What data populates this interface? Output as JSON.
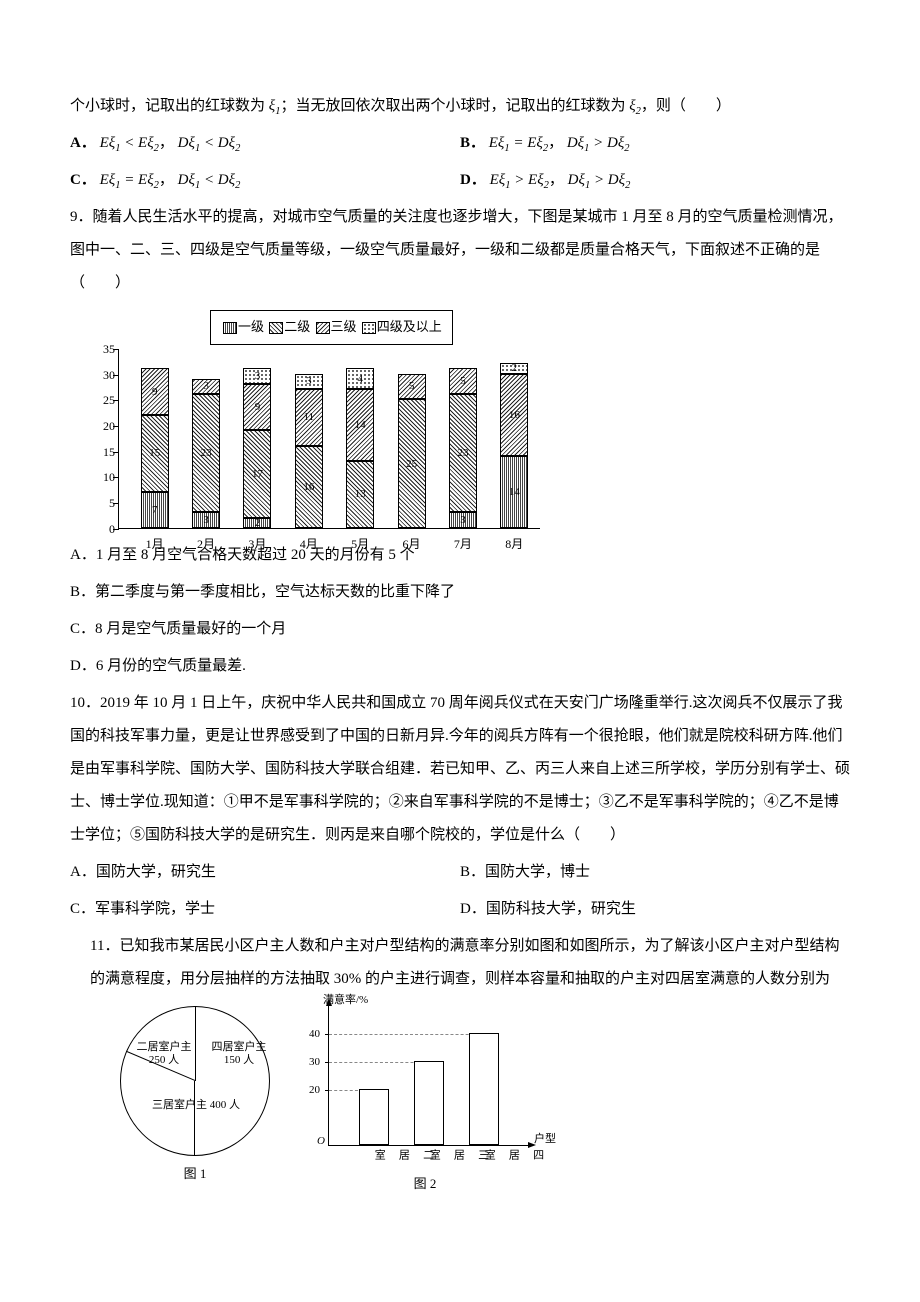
{
  "q8": {
    "stem": "个小球时，记取出的红球数为 ξ₁；当无放回依次取出两个小球时，记取出的红球数为 ξ₂，则（　　）",
    "A": "A． Eξ₁ < Eξ₂， Dξ₁ < Dξ₂",
    "B": "B． Eξ₁ = Eξ₂， Dξ₁ > Dξ₂",
    "C": "C． Eξ₁ = Eξ₂， Dξ₁ < Dξ₂",
    "D": "D． Eξ₁ > Eξ₂， Dξ₁ > Dξ₂"
  },
  "q9": {
    "stem": "9．随着人民生活水平的提高，对城市空气质量的关注度也逐步增大，下图是某城市 1 月至 8 月的空气质量检测情况，图中一、二、三、四级是空气质量等级，一级空气质量最好，一级和二级都是质量合格天气，下面叙述不正确的是（　　）",
    "chart": {
      "legend": [
        "一级",
        "二级",
        "三级",
        "四级及以上"
      ],
      "y_max": 35,
      "y_step": 5,
      "categories": [
        "1月",
        "2月",
        "3月",
        "4月",
        "5月",
        "6月",
        "7月",
        "8月"
      ],
      "series": [
        [
          7,
          15,
          9,
          0
        ],
        [
          3,
          23,
          3,
          0
        ],
        [
          2,
          17,
          9,
          3
        ],
        [
          0,
          16,
          11,
          3
        ],
        [
          0,
          13,
          14,
          4
        ],
        [
          0,
          25,
          5,
          0
        ],
        [
          3,
          23,
          5,
          0
        ],
        [
          14,
          0,
          16,
          2
        ]
      ],
      "colors": {
        "lvl1": "pat-a",
        "lvl2": "pat-b",
        "lvl3": "pat-c",
        "lvl4": "pat-d"
      }
    },
    "A": "A．1 月至 8 月空气合格天数超过 20 天的月份有 5 个",
    "B": "B．第二季度与第一季度相比，空气达标天数的比重下降了",
    "C": "C．8 月是空气质量最好的一个月",
    "D": "D．6 月份的空气质量最差."
  },
  "q10": {
    "stem": "10．2019 年 10 月 1 日上午，庆祝中华人民共和国成立 70 周年阅兵仪式在天安门广场隆重举行.这次阅兵不仅展示了我国的科技军事力量，更是让世界感受到了中国的日新月异.今年的阅兵方阵有一个很抢眼，他们就是院校科研方阵.他们是由军事科学院、国防大学、国防科技大学联合组建．若已知甲、乙、丙三人来自上述三所学校，学历分别有学士、硕士、博士学位.现知道：①甲不是军事科学院的；②来自军事科学院的不是博士；③乙不是军事科学院的；④乙不是博士学位；⑤国防科技大学的是研究生．则丙是来自哪个院校的，学位是什么（　　）",
    "A": "A．国防大学，研究生",
    "B": "B．国防大学，博士",
    "C": "C．军事科学院，学士",
    "D": "D．国防科技大学，研究生"
  },
  "q11": {
    "stem": "11．已知我市某居民小区户主人数和户主对户型结构的满意率分别如图和如图所示，为了解该小区户主对户型结构的满意程度，用分层抽样的方法抽取 30% 的户主进行调查，则样本容量和抽取的户主对四居室满意的人数分别为",
    "pie": {
      "caption": "图 1",
      "slices": [
        {
          "label": "二居室户主 250 人",
          "angle_start": 180,
          "angle_end": 293
        },
        {
          "label": "四居室户主 150 人",
          "angle_start": 293,
          "angle_end": 360
        },
        {
          "label": "三居室户主 400 人",
          "angle_start": 0,
          "angle_end": 180
        }
      ]
    },
    "bar": {
      "caption": "图 2",
      "y_label": "满意率/%",
      "x_label": "户型",
      "y_ticks": [
        20,
        30,
        40
      ],
      "categories": [
        "二居室",
        "三居室",
        "四居室"
      ],
      "values": [
        20,
        30,
        40
      ]
    }
  }
}
